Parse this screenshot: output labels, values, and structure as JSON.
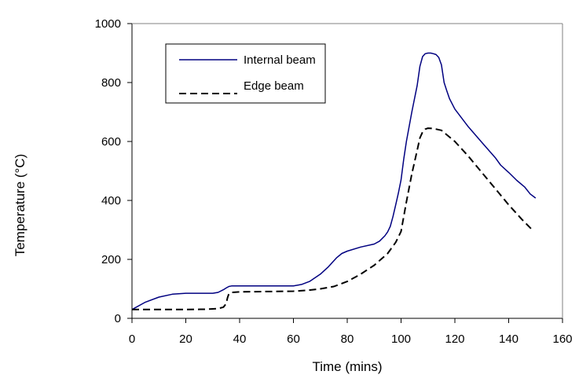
{
  "chart_data": {
    "type": "line",
    "title": "",
    "xlabel": "Time (mins)",
    "ylabel": "Temperature (°C)",
    "xlim": [
      0,
      160
    ],
    "ylim": [
      0,
      1000
    ],
    "x_ticks": [
      0,
      20,
      40,
      60,
      80,
      100,
      120,
      140,
      160
    ],
    "y_ticks": [
      0,
      200,
      400,
      600,
      800,
      1000
    ],
    "grid": false,
    "legend_position": "top-left",
    "series": [
      {
        "name": "Internal beam",
        "color": "#000080",
        "style": "solid",
        "x": [
          0,
          5,
          10,
          15,
          20,
          25,
          30,
          32,
          34,
          35,
          36,
          37,
          40,
          50,
          60,
          63,
          66,
          70,
          73,
          76,
          78,
          80,
          85,
          90,
          92,
          94,
          95,
          96,
          97,
          98,
          99,
          100,
          101,
          102,
          104,
          106,
          107,
          108,
          109,
          110,
          111,
          112,
          113,
          114,
          115,
          116,
          117,
          118,
          120,
          125,
          130,
          135,
          137,
          140,
          143,
          146,
          148,
          150
        ],
        "y": [
          30,
          55,
          72,
          82,
          85,
          85,
          85,
          88,
          97,
          103,
          108,
          110,
          110,
          110,
          110,
          115,
          125,
          150,
          175,
          205,
          220,
          228,
          242,
          252,
          262,
          280,
          293,
          312,
          345,
          385,
          425,
          470,
          540,
          600,
          700,
          790,
          855,
          888,
          898,
          900,
          900,
          898,
          895,
          885,
          860,
          800,
          772,
          745,
          710,
          650,
          597,
          545,
          520,
          495,
          468,
          445,
          422,
          408
        ]
      },
      {
        "name": "Edge beam",
        "color": "#000000",
        "style": "dashed",
        "x": [
          0,
          10,
          20,
          28,
          32,
          34,
          35,
          35.5,
          36,
          37,
          40,
          50,
          60,
          65,
          70,
          75,
          80,
          85,
          90,
          95,
          98,
          100,
          101,
          102,
          104,
          106,
          107,
          108,
          109,
          110,
          112,
          115,
          120,
          125,
          130,
          135,
          140,
          145,
          149
        ],
        "y": [
          30,
          30,
          30,
          31,
          33,
          38,
          50,
          70,
          83,
          88,
          90,
          91,
          92,
          95,
          100,
          108,
          125,
          150,
          180,
          220,
          258,
          295,
          345,
          395,
          490,
          570,
          612,
          632,
          642,
          645,
          644,
          638,
          600,
          550,
          495,
          440,
          385,
          335,
          298
        ]
      }
    ]
  }
}
